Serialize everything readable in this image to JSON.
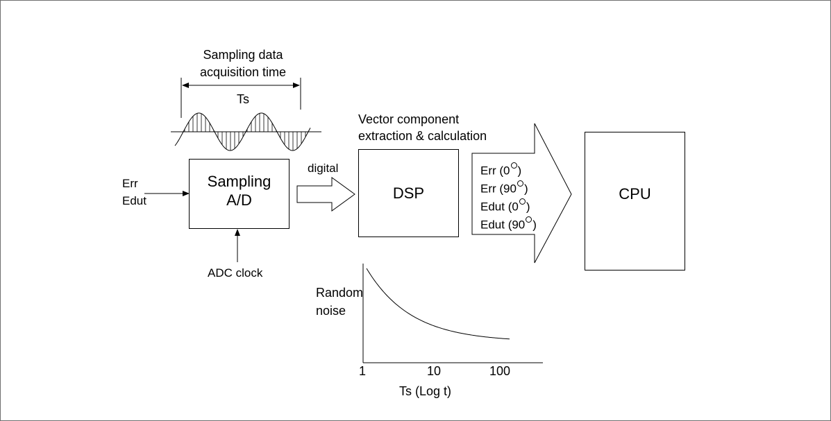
{
  "sampling": {
    "title_line1": "Sampling data",
    "title_line2": "acquisition time",
    "ts_label": "Ts",
    "block_line1": "Sampling",
    "block_line2": "A/D"
  },
  "inputs": {
    "err": "Err",
    "edut": "Edut"
  },
  "adc_clock": "ADC clock",
  "digital_label": "digital",
  "dsp": {
    "title_line1": "Vector component",
    "title_line2": "extraction & calculation",
    "block": "DSP"
  },
  "vector_outputs": [
    {
      "prefix": "Err (0",
      "suffix": ")"
    },
    {
      "prefix": "Err (90",
      "suffix": ")"
    },
    {
      "prefix": "Edut (0",
      "suffix": ")"
    },
    {
      "prefix": "Edut (90",
      "suffix": ")"
    }
  ],
  "cpu": "CPU",
  "noise_chart": {
    "ylabel_line1": "Random",
    "ylabel_line2": "noise",
    "ticks": [
      "1",
      "10",
      "100"
    ],
    "xlabel": "Ts  (Log t)"
  }
}
